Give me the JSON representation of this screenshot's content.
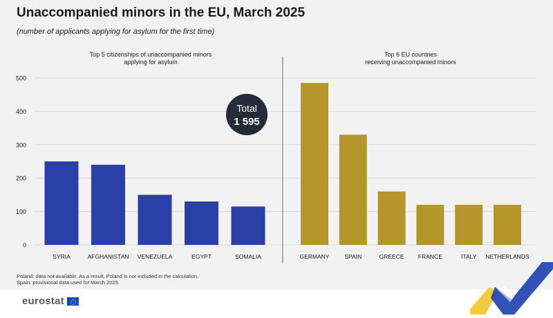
{
  "title": "Unaccompanied minors in the EU, March 2025",
  "subtitle": "(number of applicants applying for asylum for the first time)",
  "total_badge": {
    "label": "Total",
    "value": "1 595"
  },
  "footnotes": [
    "Poland: data not available. As a result, Poland is not included in the calculation.",
    "Spain: provisional data used for March 2025."
  ],
  "logo": {
    "wordmark": "eurostat"
  },
  "chart_data": [
    {
      "type": "bar",
      "title": [
        "Top 5 citizenships of unaccompanied minors",
        "applying for asylum"
      ],
      "categories": [
        "SYRIA",
        "AFGHANISTAN",
        "VENEZUELA",
        "EGYPT",
        "SOMALIA"
      ],
      "values": [
        250,
        240,
        150,
        130,
        115
      ],
      "color": "#2a40a8",
      "ylim": [
        0,
        500
      ],
      "yticks": [
        0,
        100,
        200,
        300,
        400,
        500
      ],
      "grid": true
    },
    {
      "type": "bar",
      "title": [
        "Top 6 EU countries",
        "receiving unaccompanied minors"
      ],
      "categories": [
        "GERMANY",
        "SPAIN",
        "GREECE",
        "FRANCE",
        "ITALY",
        "NETHERLANDS"
      ],
      "values": [
        485,
        330,
        160,
        120,
        120,
        120
      ],
      "color": "#b5962a",
      "ylim": [
        0,
        500
      ],
      "grid": true
    }
  ]
}
